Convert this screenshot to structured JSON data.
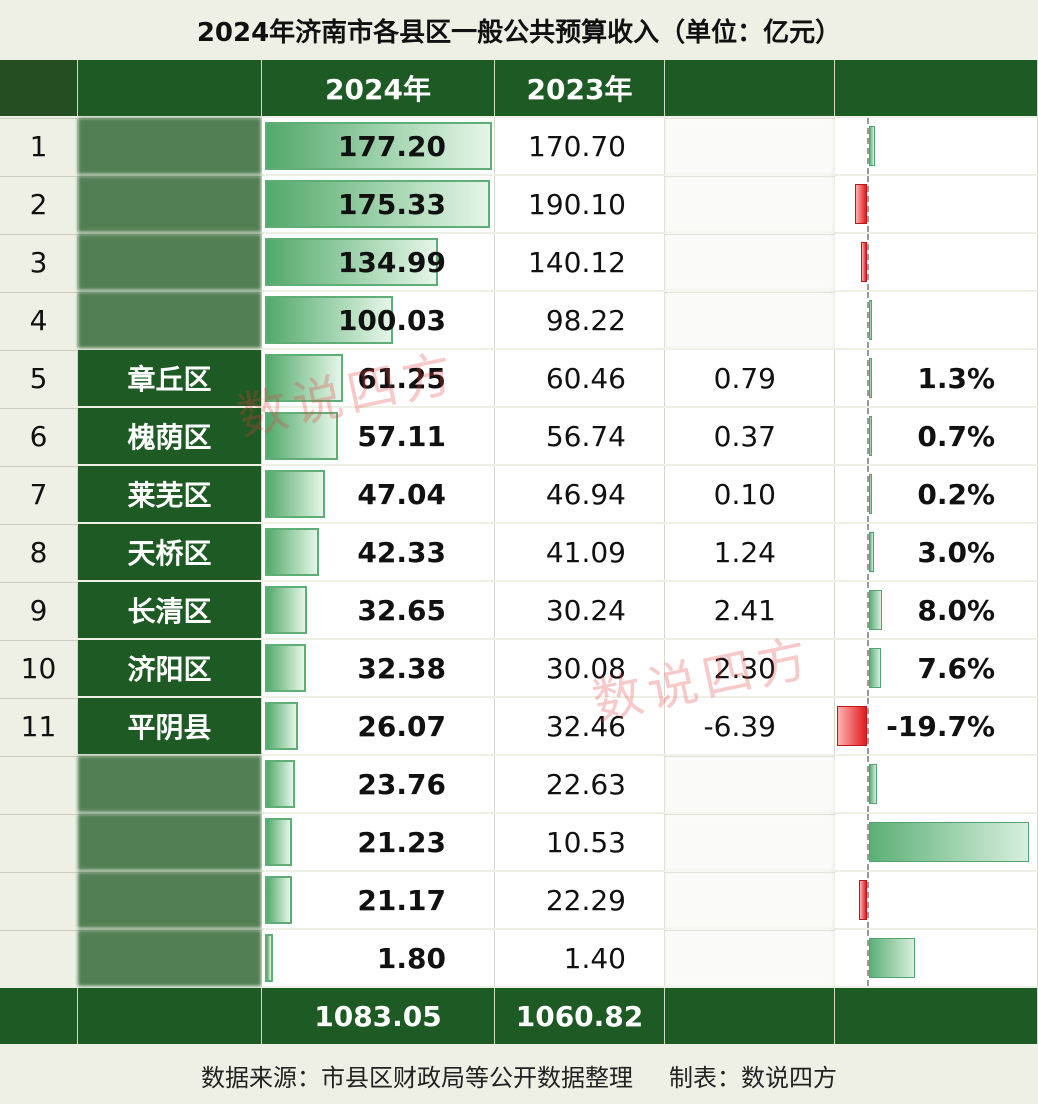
{
  "title": "2024年济南市各县区一般公共预算收入（单位：亿元）",
  "headers": {
    "rank": "",
    "name": "",
    "v2024": "2024年",
    "v2023": "2023年",
    "diff": "",
    "pct": ""
  },
  "rows": [
    {
      "rank": "1",
      "name": "",
      "v2024": "177.20",
      "v2023": "170.70",
      "diff": "",
      "pct": "",
      "pct_value": 3.8,
      "pct_visible": false
    },
    {
      "rank": "2",
      "name": "",
      "v2024": "175.33",
      "v2023": "190.10",
      "diff": "",
      "pct": "",
      "pct_value": -7.8,
      "pct_visible": false
    },
    {
      "rank": "3",
      "name": "",
      "v2024": "134.99",
      "v2023": "140.12",
      "diff": "",
      "pct": "",
      "pct_value": -3.7,
      "pct_visible": false
    },
    {
      "rank": "4",
      "name": "",
      "v2024": "100.03",
      "v2023": "98.22",
      "diff": "",
      "pct": "",
      "pct_value": 1.8,
      "pct_visible": false
    },
    {
      "rank": "5",
      "name": "章丘区",
      "v2024": "61.25",
      "v2023": "60.46",
      "diff": "0.79",
      "pct": "1.3%",
      "pct_value": 1.3,
      "pct_visible": true
    },
    {
      "rank": "6",
      "name": "槐荫区",
      "v2024": "57.11",
      "v2023": "56.74",
      "diff": "0.37",
      "pct": "0.7%",
      "pct_value": 0.7,
      "pct_visible": true
    },
    {
      "rank": "7",
      "name": "莱芜区",
      "v2024": "47.04",
      "v2023": "46.94",
      "diff": "0.10",
      "pct": "0.2%",
      "pct_value": 0.2,
      "pct_visible": true
    },
    {
      "rank": "8",
      "name": "天桥区",
      "v2024": "42.33",
      "v2023": "41.09",
      "diff": "1.24",
      "pct": "3.0%",
      "pct_value": 3.0,
      "pct_visible": true
    },
    {
      "rank": "9",
      "name": "长清区",
      "v2024": "32.65",
      "v2023": "30.24",
      "diff": "2.41",
      "pct": "8.0%",
      "pct_value": 8.0,
      "pct_visible": true
    },
    {
      "rank": "10",
      "name": "济阳区",
      "v2024": "32.38",
      "v2023": "30.08",
      "diff": "2.30",
      "pct": "7.6%",
      "pct_value": 7.6,
      "pct_visible": true
    },
    {
      "rank": "11",
      "name": "平阴县",
      "v2024": "26.07",
      "v2023": "32.46",
      "diff": "-6.39",
      "pct": "-19.7%",
      "pct_value": -19.7,
      "pct_visible": true
    },
    {
      "rank": "",
      "name": "",
      "v2024": "23.76",
      "v2023": "22.63",
      "diff": "",
      "pct": "",
      "pct_value": 5.0,
      "pct_visible": false
    },
    {
      "rank": "",
      "name": "",
      "v2024": "21.23",
      "v2023": "10.53",
      "diff": "",
      "pct": "",
      "pct_value": 101.6,
      "pct_visible": false
    },
    {
      "rank": "",
      "name": "",
      "v2024": "21.17",
      "v2023": "22.29",
      "diff": "",
      "pct": "",
      "pct_value": -5.0,
      "pct_visible": false
    },
    {
      "rank": "",
      "name": "",
      "v2024": "1.80",
      "v2023": "1.40",
      "diff": "",
      "pct": "",
      "pct_value": 28.6,
      "pct_visible": false
    }
  ],
  "total": {
    "v2024": "1083.05",
    "v2023": "1060.82"
  },
  "footer": {
    "source": "数据来源：市县区财政局等公开数据整理",
    "maker": "制表：数说四方"
  },
  "watermark": "数说四方",
  "colors": {
    "header_green": "#1e5a24",
    "bar_green": "#53a96b",
    "bar_red": "#e01c1c"
  }
}
